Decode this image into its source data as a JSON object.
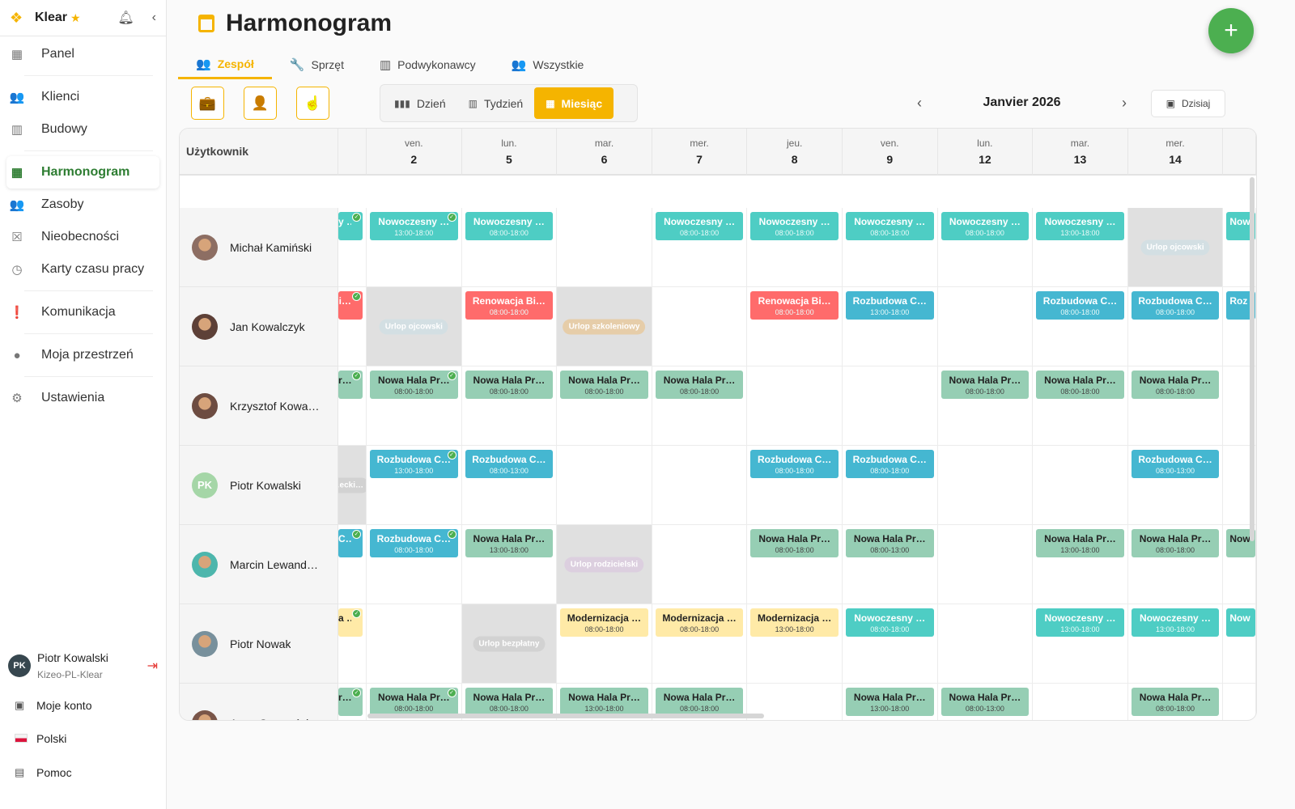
{
  "app": {
    "name": "Klear"
  },
  "sidebar": {
    "items": [
      {
        "label": "Panel",
        "icon": "dashboard-icon",
        "glyph": "▦"
      },
      {
        "label": "Klienci",
        "icon": "people-icon",
        "glyph": "👥"
      },
      {
        "label": "Budowy",
        "icon": "building-icon",
        "glyph": "▥"
      },
      {
        "label": "Harmonogram",
        "icon": "calendar-icon",
        "glyph": "▦",
        "active": true
      },
      {
        "label": "Zasoby",
        "icon": "groups-icon",
        "glyph": "👥"
      },
      {
        "label": "Nieobecności",
        "icon": "event-busy-icon",
        "glyph": "☒"
      },
      {
        "label": "Karty czasu pracy",
        "icon": "clock-icon",
        "glyph": "◷"
      },
      {
        "label": "Komunikacja",
        "icon": "feedback-icon",
        "glyph": "❗"
      },
      {
        "label": "Moja przestrzeń",
        "icon": "person-icon",
        "glyph": "●"
      },
      {
        "label": "Ustawienia",
        "icon": "gear-icon",
        "glyph": "⚙"
      }
    ],
    "user": {
      "initials": "PK",
      "name": "Piotr Kowalski",
      "org": "Kizeo-PL-Klear"
    },
    "bottom": {
      "account": "Moje konto",
      "language": "Polski",
      "help": "Pomoc"
    }
  },
  "header": {
    "title": "Harmonogram"
  },
  "tabs": [
    {
      "label": "Zespół",
      "icon": "team-icon",
      "glyph": "👥",
      "active": true
    },
    {
      "label": "Sprzęt",
      "icon": "wrench-icon",
      "glyph": "🔧"
    },
    {
      "label": "Podwykonawcy",
      "icon": "building-icon",
      "glyph": "▥"
    },
    {
      "label": "Wszystkie",
      "icon": "groups-icon",
      "glyph": "👥"
    }
  ],
  "filters": [
    {
      "icon": "briefcase-icon",
      "glyph": "💼"
    },
    {
      "icon": "person-icon",
      "glyph": "👤"
    },
    {
      "icon": "touch-icon",
      "glyph": "☝"
    }
  ],
  "views": [
    {
      "label": "Dzień",
      "icon": "view-day-icon",
      "glyph": "▮▮▮"
    },
    {
      "label": "Tydzień",
      "icon": "view-week-icon",
      "glyph": "▥"
    },
    {
      "label": "Miesiąc",
      "icon": "calendar-month-icon",
      "glyph": "▦",
      "active": true
    }
  ],
  "month": {
    "label": "Janvier 2026",
    "today": "Dzisiaj"
  },
  "colors": {
    "teal": "#4ECDC4",
    "red": "#FF6B6B",
    "blue": "#45B7D1",
    "green": "#96CEB4",
    "yellow": "#FFEAA7",
    "accent": "#F5B400",
    "primary": "#4CAF50"
  },
  "pill_colors": {
    "blue": "#d3dfe3",
    "tan": "#e6cda9",
    "purple": "#dccfdf",
    "gray": "#d2d2d2"
  },
  "table": {
    "user_header": "Użytkownik",
    "days": [
      {
        "dow": "",
        "num": ""
      },
      {
        "dow": "ven.",
        "num": "2"
      },
      {
        "dow": "lun.",
        "num": "5"
      },
      {
        "dow": "mar.",
        "num": "6"
      },
      {
        "dow": "mer.",
        "num": "7"
      },
      {
        "dow": "jeu.",
        "num": "8"
      },
      {
        "dow": "ven.",
        "num": "9"
      },
      {
        "dow": "lun.",
        "num": "12"
      },
      {
        "dow": "mar.",
        "num": "13"
      },
      {
        "dow": "mer.",
        "num": "14"
      },
      {
        "dow": "",
        "num": ""
      }
    ],
    "rows": [
      {
        "name": "Michał Kamiński",
        "avatar": "#8d6e63",
        "cells": [
          {
            "t": "y …",
            "c": "teal",
            "check": true
          },
          {
            "t": "Nowoczesny …",
            "time": "13:00-18:00",
            "c": "teal",
            "check": true
          },
          {
            "t": "Nowoczesny …",
            "time": "08:00-18:00",
            "c": "teal"
          },
          null,
          {
            "t": "Nowoczesny …",
            "time": "08:00-18:00",
            "c": "teal"
          },
          {
            "t": "Nowoczesny …",
            "time": "08:00-18:00",
            "c": "teal"
          },
          {
            "t": "Nowoczesny …",
            "time": "08:00-18:00",
            "c": "teal"
          },
          {
            "t": "Nowoczesny …",
            "time": "08:00-18:00",
            "c": "teal"
          },
          {
            "t": "Nowoczesny …",
            "time": "13:00-18:00",
            "c": "teal"
          },
          {
            "absence": "Urlop ojcowski",
            "tone": "blue"
          },
          {
            "t": "Now",
            "c": "teal"
          }
        ]
      },
      {
        "name": "Jan Kowalczyk",
        "avatar": "#5d4037",
        "cells": [
          {
            "t": "i…",
            "c": "red",
            "check": true
          },
          {
            "absence": "Urlop ojcowski",
            "tone": "blue"
          },
          {
            "t": "Renowacja Bi…",
            "time": "08:00-18:00",
            "c": "red"
          },
          {
            "absence": "Urlop szkoleniowy",
            "tone": "tan"
          },
          null,
          {
            "t": "Renowacja Bi…",
            "time": "08:00-18:00",
            "c": "red"
          },
          {
            "t": "Rozbudowa C…",
            "time": "13:00-18:00",
            "c": "blue"
          },
          null,
          {
            "t": "Rozbudowa C…",
            "time": "08:00-18:00",
            "c": "blue"
          },
          {
            "t": "Rozbudowa C…",
            "time": "08:00-18:00",
            "c": "blue"
          },
          {
            "t": "Roz",
            "c": "blue"
          }
        ]
      },
      {
        "name": "Krzysztof Kowa…",
        "avatar": "#6d4c41",
        "cells": [
          {
            "t": "r…",
            "c": "green",
            "check": true
          },
          {
            "t": "Nowa Hala Pr…",
            "time": "08:00-18:00",
            "c": "green",
            "check": true
          },
          {
            "t": "Nowa Hala Pr…",
            "time": "08:00-18:00",
            "c": "green"
          },
          {
            "t": "Nowa Hala Pr…",
            "time": "08:00-18:00",
            "c": "green"
          },
          {
            "t": "Nowa Hala Pr…",
            "time": "08:00-18:00",
            "c": "green"
          },
          null,
          null,
          {
            "t": "Nowa Hala Pr…",
            "time": "08:00-18:00",
            "c": "green"
          },
          {
            "t": "Nowa Hala Pr…",
            "time": "08:00-18:00",
            "c": "green"
          },
          {
            "t": "Nowa Hala Pr…",
            "time": "08:00-18:00",
            "c": "green"
          },
          null
        ]
      },
      {
        "name": "Piotr Kowalski",
        "initials": "PK",
        "avatar": "#a5d6a7",
        "cells": [
          {
            "absence": "…ecki…",
            "tone": "gray"
          },
          {
            "t": "Rozbudowa C…",
            "time": "13:00-18:00",
            "c": "blue",
            "check": true
          },
          {
            "t": "Rozbudowa C…",
            "time": "08:00-13:00",
            "c": "blue"
          },
          null,
          null,
          {
            "t": "Rozbudowa C…",
            "time": "08:00-18:00",
            "c": "blue"
          },
          {
            "t": "Rozbudowa C…",
            "time": "08:00-18:00",
            "c": "blue"
          },
          null,
          null,
          {
            "t": "Rozbudowa C…",
            "time": "08:00-13:00",
            "c": "blue"
          },
          null
        ]
      },
      {
        "name": "Marcin Lewand…",
        "avatar": "#4db6ac",
        "cells": [
          {
            "t": "C…",
            "c": "blue",
            "check": true
          },
          {
            "t": "Rozbudowa C…",
            "time": "08:00-18:00",
            "c": "blue",
            "check": true
          },
          {
            "t": "Nowa Hala Pr…",
            "time": "13:00-18:00",
            "c": "green"
          },
          {
            "absence": "Urlop rodzicielski",
            "tone": "purple"
          },
          null,
          {
            "t": "Nowa Hala Pr…",
            "time": "08:00-18:00",
            "c": "green"
          },
          {
            "t": "Nowa Hala Pr…",
            "time": "08:00-13:00",
            "c": "green"
          },
          null,
          {
            "t": "Nowa Hala Pr…",
            "time": "13:00-18:00",
            "c": "green"
          },
          {
            "t": "Nowa Hala Pr…",
            "time": "08:00-18:00",
            "c": "green"
          },
          {
            "t": "Now",
            "c": "green"
          }
        ]
      },
      {
        "name": "Piotr Nowak",
        "avatar": "#78909c",
        "cells": [
          {
            "t": "a …",
            "c": "yellow",
            "check": true
          },
          null,
          {
            "absence": "Urlop bezpłatny",
            "tone": "gray"
          },
          {
            "t": "Modernizacja …",
            "time": "08:00-18:00",
            "c": "yellow"
          },
          {
            "t": "Modernizacja …",
            "time": "08:00-18:00",
            "c": "yellow"
          },
          {
            "t": "Modernizacja …",
            "time": "13:00-18:00",
            "c": "yellow"
          },
          {
            "t": "Nowoczesny …",
            "time": "08:00-18:00",
            "c": "teal"
          },
          null,
          {
            "t": "Nowoczesny …",
            "time": "13:00-18:00",
            "c": "teal"
          },
          {
            "t": "Nowoczesny …",
            "time": "13:00-18:00",
            "c": "teal"
          },
          {
            "t": "Now",
            "c": "teal"
          }
        ]
      },
      {
        "name": "Anna Szymańska",
        "avatar": "#795548",
        "cells": [
          {
            "t": "r…",
            "c": "green",
            "check": true
          },
          {
            "t": "Nowa Hala Pr…",
            "time": "08:00-18:00",
            "c": "green",
            "check": true
          },
          {
            "t": "Nowa Hala Pr…",
            "time": "08:00-18:00",
            "c": "green"
          },
          {
            "t": "Nowa Hala Pr…",
            "time": "13:00-18:00",
            "c": "green"
          },
          {
            "t": "Nowa Hala Pr…",
            "time": "08:00-18:00",
            "c": "green"
          },
          null,
          {
            "t": "Nowa Hala Pr…",
            "time": "13:00-18:00",
            "c": "green"
          },
          {
            "t": "Nowa Hala Pr…",
            "time": "08:00-13:00",
            "c": "green"
          },
          null,
          {
            "t": "Nowa Hala Pr…",
            "time": "08:00-18:00",
            "c": "green"
          },
          null
        ]
      }
    ]
  }
}
